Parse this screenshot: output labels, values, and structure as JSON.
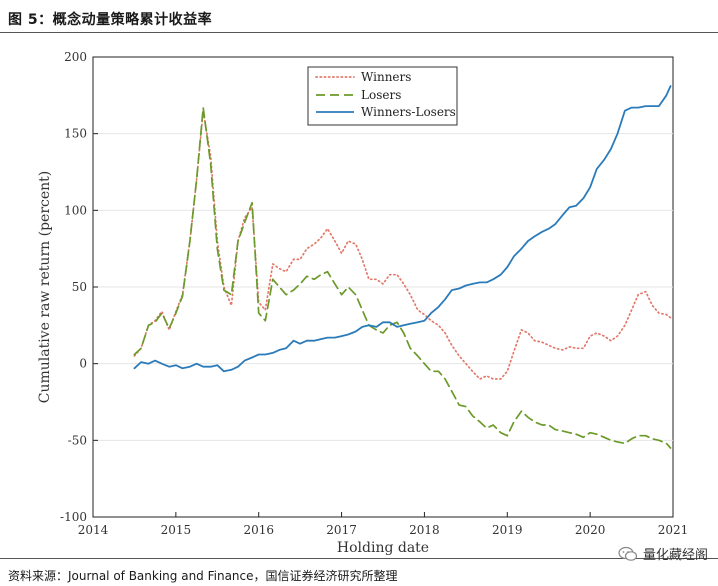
{
  "figure": {
    "title": "图 5：概念动量策略累计收益率",
    "source": "资料来源：Journal of Banking and Finance，国信证券经济研究所整理",
    "watermark": "量化藏经阁"
  },
  "chart_data": {
    "type": "line",
    "title": "",
    "xlabel": "Holding date",
    "ylabel": "Cumulative raw return (percent)",
    "xlim": [
      2014,
      2021
    ],
    "ylim": [
      -100,
      200
    ],
    "xticks": [
      2014,
      2015,
      2016,
      2017,
      2018,
      2019,
      2020,
      2021
    ],
    "yticks": [
      -100,
      -50,
      0,
      50,
      100,
      150,
      200
    ],
    "legend_position": "top-center",
    "series": [
      {
        "name": "Winners",
        "color": "#e3786a",
        "dash": "dotted",
        "points": [
          [
            2014.5,
            5
          ],
          [
            2014.58,
            10
          ],
          [
            2014.67,
            25
          ],
          [
            2014.75,
            28
          ],
          [
            2014.83,
            34
          ],
          [
            2014.92,
            22
          ],
          [
            2015.0,
            34
          ],
          [
            2015.08,
            45
          ],
          [
            2015.17,
            80
          ],
          [
            2015.25,
            120
          ],
          [
            2015.33,
            165
          ],
          [
            2015.42,
            135
          ],
          [
            2015.5,
            80
          ],
          [
            2015.58,
            50
          ],
          [
            2015.67,
            38
          ],
          [
            2015.75,
            80
          ],
          [
            2015.83,
            95
          ],
          [
            2015.92,
            102
          ],
          [
            2016.0,
            40
          ],
          [
            2016.08,
            35
          ],
          [
            2016.17,
            65
          ],
          [
            2016.25,
            62
          ],
          [
            2016.33,
            60
          ],
          [
            2016.42,
            68
          ],
          [
            2016.5,
            68
          ],
          [
            2016.58,
            75
          ],
          [
            2016.67,
            78
          ],
          [
            2016.75,
            82
          ],
          [
            2016.83,
            88
          ],
          [
            2016.92,
            80
          ],
          [
            2017.0,
            72
          ],
          [
            2017.08,
            80
          ],
          [
            2017.17,
            78
          ],
          [
            2017.25,
            68
          ],
          [
            2017.33,
            55
          ],
          [
            2017.42,
            55
          ],
          [
            2017.5,
            52
          ],
          [
            2017.58,
            58
          ],
          [
            2017.67,
            58
          ],
          [
            2017.75,
            52
          ],
          [
            2017.83,
            45
          ],
          [
            2017.92,
            35
          ],
          [
            2018.0,
            32
          ],
          [
            2018.08,
            28
          ],
          [
            2018.17,
            25
          ],
          [
            2018.25,
            20
          ],
          [
            2018.33,
            12
          ],
          [
            2018.42,
            5
          ],
          [
            2018.5,
            0
          ],
          [
            2018.58,
            -5
          ],
          [
            2018.67,
            -10
          ],
          [
            2018.75,
            -8
          ],
          [
            2018.83,
            -10
          ],
          [
            2018.92,
            -10
          ],
          [
            2019.0,
            -5
          ],
          [
            2019.08,
            8
          ],
          [
            2019.17,
            22
          ],
          [
            2019.25,
            20
          ],
          [
            2019.33,
            15
          ],
          [
            2019.42,
            14
          ],
          [
            2019.5,
            12
          ],
          [
            2019.58,
            10
          ],
          [
            2019.67,
            9
          ],
          [
            2019.75,
            11
          ],
          [
            2019.83,
            10
          ],
          [
            2019.92,
            10
          ],
          [
            2020.0,
            18
          ],
          [
            2020.08,
            20
          ],
          [
            2020.17,
            18
          ],
          [
            2020.25,
            15
          ],
          [
            2020.33,
            18
          ],
          [
            2020.42,
            25
          ],
          [
            2020.5,
            35
          ],
          [
            2020.58,
            45
          ],
          [
            2020.67,
            47
          ],
          [
            2020.75,
            38
          ],
          [
            2020.83,
            33
          ],
          [
            2020.92,
            32
          ],
          [
            2020.97,
            30
          ]
        ]
      },
      {
        "name": "Losers",
        "color": "#6b9a2a",
        "dash": "dashed",
        "points": [
          [
            2014.5,
            6
          ],
          [
            2014.58,
            10
          ],
          [
            2014.67,
            25
          ],
          [
            2014.75,
            27
          ],
          [
            2014.83,
            33
          ],
          [
            2014.92,
            23
          ],
          [
            2015.0,
            33
          ],
          [
            2015.08,
            44
          ],
          [
            2015.17,
            80
          ],
          [
            2015.25,
            120
          ],
          [
            2015.33,
            167
          ],
          [
            2015.42,
            130
          ],
          [
            2015.5,
            75
          ],
          [
            2015.58,
            48
          ],
          [
            2015.67,
            45
          ],
          [
            2015.75,
            80
          ],
          [
            2015.83,
            92
          ],
          [
            2015.92,
            105
          ],
          [
            2016.0,
            33
          ],
          [
            2016.08,
            28
          ],
          [
            2016.17,
            55
          ],
          [
            2016.25,
            50
          ],
          [
            2016.33,
            45
          ],
          [
            2016.42,
            48
          ],
          [
            2016.5,
            52
          ],
          [
            2016.58,
            57
          ],
          [
            2016.67,
            55
          ],
          [
            2016.75,
            58
          ],
          [
            2016.83,
            60
          ],
          [
            2016.92,
            52
          ],
          [
            2017.0,
            45
          ],
          [
            2017.08,
            50
          ],
          [
            2017.17,
            45
          ],
          [
            2017.25,
            35
          ],
          [
            2017.33,
            25
          ],
          [
            2017.42,
            22
          ],
          [
            2017.5,
            20
          ],
          [
            2017.58,
            25
          ],
          [
            2017.67,
            27
          ],
          [
            2017.75,
            20
          ],
          [
            2017.83,
            10
          ],
          [
            2017.92,
            5
          ],
          [
            2018.0,
            0
          ],
          [
            2018.08,
            -5
          ],
          [
            2018.17,
            -5
          ],
          [
            2018.25,
            -10
          ],
          [
            2018.33,
            -18
          ],
          [
            2018.42,
            -27
          ],
          [
            2018.5,
            -28
          ],
          [
            2018.58,
            -34
          ],
          [
            2018.67,
            -38
          ],
          [
            2018.75,
            -42
          ],
          [
            2018.83,
            -40
          ],
          [
            2018.92,
            -45
          ],
          [
            2019.0,
            -47
          ],
          [
            2019.08,
            -38
          ],
          [
            2019.17,
            -31
          ],
          [
            2019.25,
            -35
          ],
          [
            2019.33,
            -38
          ],
          [
            2019.42,
            -40
          ],
          [
            2019.5,
            -40
          ],
          [
            2019.58,
            -43
          ],
          [
            2019.67,
            -44
          ],
          [
            2019.75,
            -45
          ],
          [
            2019.83,
            -46
          ],
          [
            2019.92,
            -48
          ],
          [
            2020.0,
            -45
          ],
          [
            2020.08,
            -46
          ],
          [
            2020.17,
            -48
          ],
          [
            2020.25,
            -50
          ],
          [
            2020.33,
            -51
          ],
          [
            2020.42,
            -52
          ],
          [
            2020.5,
            -49
          ],
          [
            2020.58,
            -47
          ],
          [
            2020.67,
            -47
          ],
          [
            2020.75,
            -49
          ],
          [
            2020.83,
            -50
          ],
          [
            2020.92,
            -52
          ],
          [
            2020.97,
            -55
          ]
        ]
      },
      {
        "name": "Winners-Losers",
        "color": "#2b7bba",
        "dash": "solid",
        "points": [
          [
            2014.5,
            -3
          ],
          [
            2014.58,
            1
          ],
          [
            2014.67,
            0
          ],
          [
            2014.75,
            2
          ],
          [
            2014.83,
            0
          ],
          [
            2014.92,
            -2
          ],
          [
            2015.0,
            -1
          ],
          [
            2015.08,
            -3
          ],
          [
            2015.17,
            -2
          ],
          [
            2015.25,
            0
          ],
          [
            2015.33,
            -2
          ],
          [
            2015.42,
            -2
          ],
          [
            2015.5,
            -1
          ],
          [
            2015.58,
            -5
          ],
          [
            2015.67,
            -4
          ],
          [
            2015.75,
            -2
          ],
          [
            2015.83,
            2
          ],
          [
            2015.92,
            4
          ],
          [
            2016.0,
            6
          ],
          [
            2016.08,
            6
          ],
          [
            2016.17,
            7
          ],
          [
            2016.25,
            9
          ],
          [
            2016.33,
            10
          ],
          [
            2016.42,
            15
          ],
          [
            2016.5,
            13
          ],
          [
            2016.58,
            15
          ],
          [
            2016.67,
            15
          ],
          [
            2016.75,
            16
          ],
          [
            2016.83,
            17
          ],
          [
            2016.92,
            17
          ],
          [
            2017.0,
            18
          ],
          [
            2017.08,
            19
          ],
          [
            2017.17,
            21
          ],
          [
            2017.25,
            24
          ],
          [
            2017.33,
            25
          ],
          [
            2017.42,
            24
          ],
          [
            2017.5,
            27
          ],
          [
            2017.58,
            27
          ],
          [
            2017.67,
            24
          ],
          [
            2017.75,
            25
          ],
          [
            2017.83,
            26
          ],
          [
            2017.92,
            27
          ],
          [
            2018.0,
            28
          ],
          [
            2018.08,
            33
          ],
          [
            2018.17,
            37
          ],
          [
            2018.25,
            42
          ],
          [
            2018.33,
            48
          ],
          [
            2018.42,
            49
          ],
          [
            2018.5,
            51
          ],
          [
            2018.58,
            52
          ],
          [
            2018.67,
            53
          ],
          [
            2018.75,
            53
          ],
          [
            2018.83,
            55
          ],
          [
            2018.92,
            58
          ],
          [
            2019.0,
            63
          ],
          [
            2019.08,
            70
          ],
          [
            2019.17,
            75
          ],
          [
            2019.25,
            80
          ],
          [
            2019.33,
            83
          ],
          [
            2019.42,
            86
          ],
          [
            2019.5,
            88
          ],
          [
            2019.58,
            91
          ],
          [
            2019.67,
            97
          ],
          [
            2019.75,
            102
          ],
          [
            2019.83,
            103
          ],
          [
            2019.92,
            108
          ],
          [
            2020.0,
            115
          ],
          [
            2020.08,
            127
          ],
          [
            2020.17,
            133
          ],
          [
            2020.25,
            140
          ],
          [
            2020.33,
            150
          ],
          [
            2020.42,
            165
          ],
          [
            2020.5,
            167
          ],
          [
            2020.58,
            167
          ],
          [
            2020.67,
            168
          ],
          [
            2020.75,
            168
          ],
          [
            2020.83,
            168
          ],
          [
            2020.92,
            175
          ],
          [
            2020.97,
            181
          ]
        ]
      }
    ]
  }
}
